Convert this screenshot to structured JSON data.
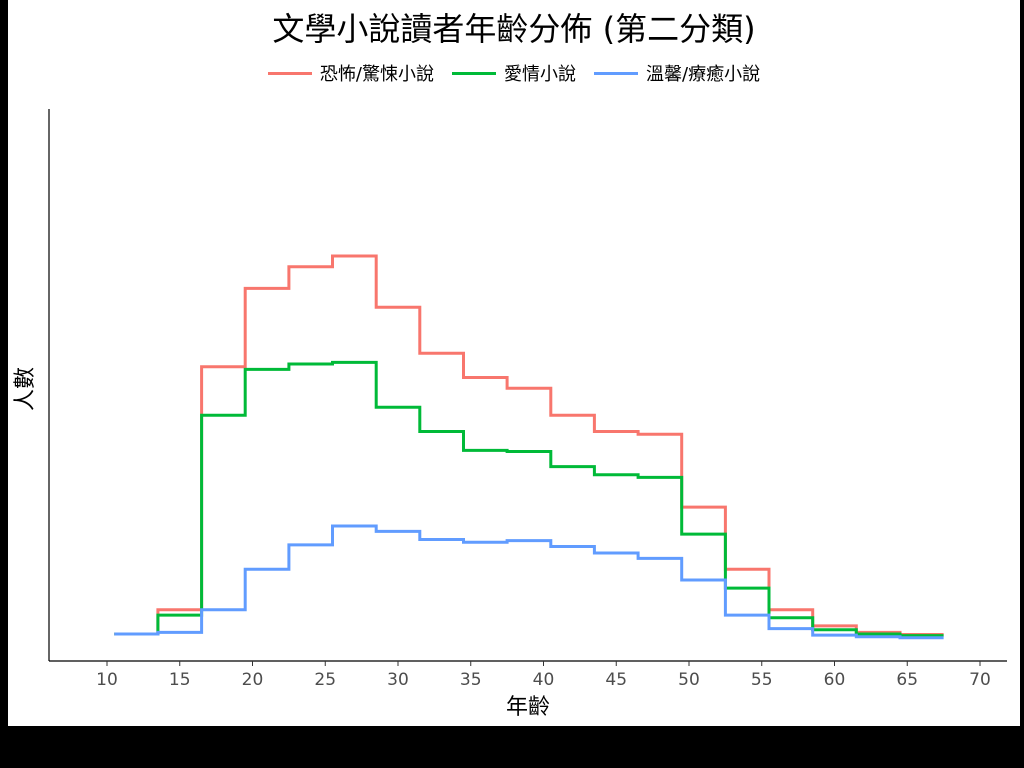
{
  "chart_data": {
    "type": "line",
    "step": true,
    "title": "文學小說讀者年齡分佈 (第二分類)",
    "xlabel": "年齡",
    "ylabel": "人數",
    "xlim": [
      10,
      70
    ],
    "xticks": [
      10,
      15,
      20,
      25,
      30,
      35,
      40,
      45,
      50,
      55,
      60,
      65,
      70
    ],
    "ylim": [
      0,
      100
    ],
    "y_tick_labels_shown": false,
    "grid": false,
    "legend_position": "top",
    "edges": [
      10.5,
      13.5,
      16.5,
      19.5,
      22.5,
      25.5,
      28.5,
      31.5,
      34.5,
      37.5,
      40.5,
      43.5,
      46.5,
      49.5,
      52.5,
      55.5,
      58.5,
      61.5,
      64.5,
      67.5
    ],
    "series": [
      {
        "name": "恐怖/驚悚小說",
        "color": "#F8766D",
        "values": [
          5,
          9.5,
          54.5,
          69,
          73,
          75,
          65.5,
          57,
          52.5,
          50.5,
          45.5,
          42.5,
          42,
          28.5,
          17,
          9.5,
          6.5,
          5.3,
          4.9
        ]
      },
      {
        "name": "愛情小說",
        "color": "#00BA38",
        "values": [
          5,
          8.5,
          45.5,
          54,
          55,
          55.3,
          47,
          42.5,
          39,
          38.8,
          36,
          34.5,
          34,
          23.5,
          13.5,
          8,
          5.8,
          5,
          4.7
        ]
      },
      {
        "name": "溫馨/療癒小說",
        "color": "#619CFF",
        "values": [
          5,
          5.3,
          9.5,
          17,
          21.5,
          25,
          24,
          22.5,
          22,
          22.3,
          21.2,
          20,
          19,
          15,
          8.5,
          6,
          4.8,
          4.5,
          4.3
        ]
      }
    ]
  }
}
